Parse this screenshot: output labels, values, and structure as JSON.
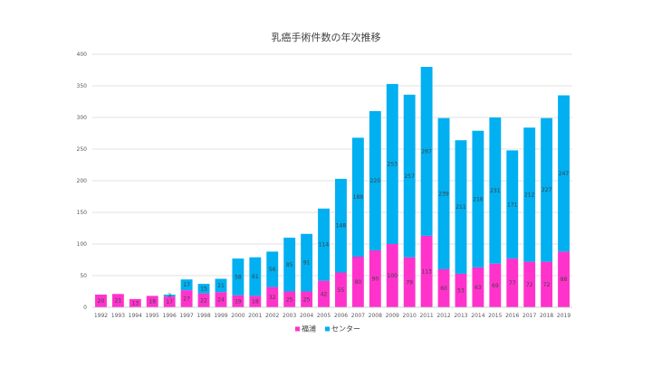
{
  "chart_data": {
    "type": "bar",
    "stacked": true,
    "title": "乳癌手術件数の年次推移",
    "xlabel": "",
    "ylabel": "",
    "ylim": [
      0,
      400
    ],
    "yticks": [
      0,
      50,
      100,
      150,
      200,
      250,
      300,
      350,
      400
    ],
    "grid": true,
    "legend_position": "bottom",
    "categories": [
      "1992",
      "1993",
      "1994",
      "1995",
      "1996",
      "1997",
      "1998",
      "1999",
      "2000",
      "2001",
      "2002",
      "2003",
      "2004",
      "2005",
      "2006",
      "2007",
      "2008",
      "2009",
      "2010",
      "2011",
      "2012",
      "2013",
      "2014",
      "2015",
      "2016",
      "2017",
      "2018",
      "2019"
    ],
    "series": [
      {
        "name": "福浦",
        "color": "#ff33cc",
        "values": [
          20,
          21,
          13,
          18,
          17,
          27,
          22,
          24,
          19,
          18,
          32,
          25,
          25,
          42,
          55,
          80,
          90,
          100,
          79,
          113,
          60,
          53,
          63,
          69,
          77,
          72,
          72,
          88
        ],
        "labels": [
          "20",
          "21",
          "13",
          "18",
          "17",
          "27",
          "22",
          "24",
          "19",
          "18",
          "32",
          "25",
          "25",
          "42",
          "55",
          "80",
          "90",
          "100",
          "79",
          "113",
          "60",
          "53",
          "63",
          "69",
          "77",
          "72",
          "72",
          "88"
        ]
      },
      {
        "name": "センター",
        "color": "#00b0f0",
        "values": [
          0,
          0,
          0,
          0,
          3,
          17,
          15,
          21,
          58,
          61,
          56,
          85,
          91,
          114,
          148,
          188,
          220,
          253,
          257,
          267,
          239,
          211,
          216,
          231,
          171,
          212,
          227,
          247
        ],
        "labels": [
          "",
          "",
          "",
          "",
          "3",
          "17",
          "15",
          "21",
          "58",
          "61",
          "56",
          "85",
          "91",
          "114",
          "148",
          "188",
          "220",
          "253",
          "257",
          "267",
          "239",
          "211",
          "216",
          "231",
          "171",
          "212",
          "227",
          "247"
        ]
      }
    ]
  }
}
